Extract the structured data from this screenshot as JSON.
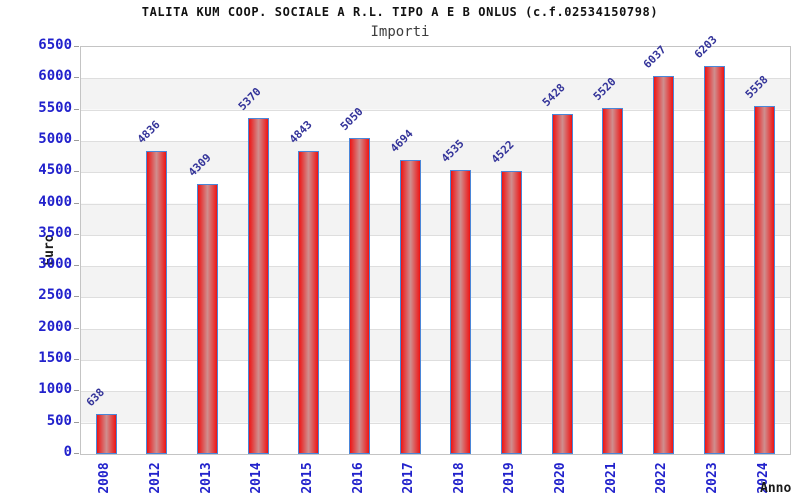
{
  "chart_data": {
    "type": "bar",
    "title": "TALITA KUM COOP. SOCIALE A R.L. TIPO A E B ONLUS (c.f.02534150798)",
    "subtitle": "Importi",
    "xlabel": "Anno",
    "ylabel": "Euro",
    "categories": [
      "2008",
      "2012",
      "2013",
      "2014",
      "2015",
      "2016",
      "2017",
      "2018",
      "2019",
      "2020",
      "2021",
      "2022",
      "2023",
      "2024"
    ],
    "values": [
      638,
      4836,
      4309,
      5370,
      4843,
      5050,
      4694,
      4535,
      4522,
      5428,
      5520,
      6037,
      6203,
      5558
    ],
    "ylim": [
      0,
      6500
    ],
    "ytick_step": 500,
    "grid": true,
    "legend_position": "none",
    "band_fill": true,
    "colors": {
      "bar_edge": "#ee1414",
      "bar_mid": "#cf8f8f",
      "bar_border": "#4a86d8",
      "axis_tick_label": "#2222cc",
      "value_label": "#333399",
      "gridline": "#dedede",
      "band": "#f3f3f3",
      "tick_mark": "#9a9a9a",
      "plot_border": "#c4c4c4",
      "title_color": "#111111",
      "subtitle_color": "#3d3d3d"
    }
  }
}
